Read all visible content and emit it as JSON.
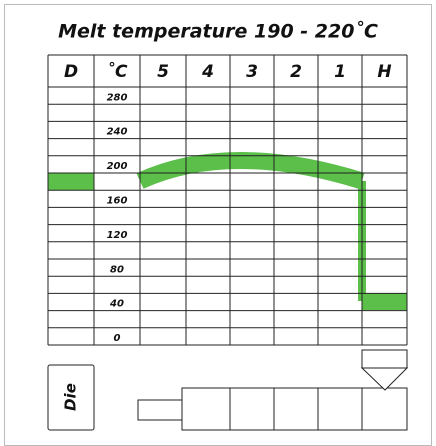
{
  "title": "Melt temperature 190 - 220˚C",
  "headers": [
    "D",
    "˚C",
    "5",
    "4",
    "3",
    "2",
    "1",
    "H"
  ],
  "scale": [
    "280",
    "240",
    "200",
    "160",
    "120",
    "80",
    "40",
    "0"
  ],
  "die": "Die"
}
